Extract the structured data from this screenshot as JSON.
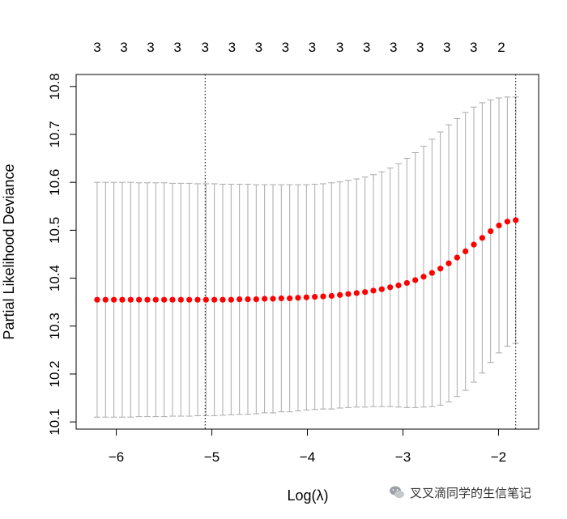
{
  "chart_data": {
    "type": "scatter",
    "title": "",
    "xlabel": "Log(λ)",
    "ylabel": "Partial Likelihood Deviance",
    "xlim": [
      -6.42,
      -1.58
    ],
    "ylim": [
      10.085,
      10.825
    ],
    "x_ticks": [
      -6,
      -5,
      -4,
      -3,
      -2
    ],
    "x_tick_labels": [
      "−6",
      "−5",
      "−4",
      "−3",
      "−2"
    ],
    "y_ticks": [
      10.1,
      10.2,
      10.3,
      10.4,
      10.5,
      10.6,
      10.7,
      10.8
    ],
    "y_tick_labels": [
      "10.1",
      "10.2",
      "10.3",
      "10.4",
      "10.5",
      "10.6",
      "10.7",
      "10.8"
    ],
    "top_axis": {
      "ticks": [
        -6.2,
        -5.92,
        -5.64,
        -5.36,
        -5.07,
        -4.79,
        -4.51,
        -4.23,
        -3.95,
        -3.66,
        -3.38,
        -3.1,
        -2.82,
        -2.54,
        -2.26,
        -1.97
      ],
      "labels": [
        "3",
        "3",
        "3",
        "3",
        "3",
        "3",
        "3",
        "3",
        "3",
        "3",
        "3",
        "3",
        "3",
        "3",
        "3",
        "2"
      ]
    },
    "vlines": [
      -5.07,
      -1.82
    ],
    "grid": false,
    "point_color": "#ff0000",
    "errorbar_color": "#aaaaaa",
    "series": [
      {
        "x_start": -6.2,
        "x_end": -1.82,
        "mean": [
          10.355,
          10.355,
          10.355,
          10.355,
          10.355,
          10.355,
          10.355,
          10.355,
          10.355,
          10.355,
          10.355,
          10.355,
          10.355,
          10.355,
          10.355,
          10.355,
          10.355,
          10.356,
          10.356,
          10.356,
          10.357,
          10.357,
          10.358,
          10.358,
          10.359,
          10.36,
          10.361,
          10.362,
          10.363,
          10.365,
          10.367,
          10.369,
          10.371,
          10.374,
          10.377,
          10.381,
          10.385,
          10.39,
          10.396,
          10.403,
          10.411,
          10.42,
          10.431,
          10.443,
          10.456,
          10.47,
          10.484,
          10.498,
          10.51,
          10.518,
          10.521
        ],
        "upper": [
          10.6,
          10.6,
          10.6,
          10.6,
          10.6,
          10.599,
          10.599,
          10.599,
          10.599,
          10.598,
          10.598,
          10.598,
          10.597,
          10.597,
          10.597,
          10.596,
          10.596,
          10.596,
          10.596,
          10.595,
          10.595,
          10.595,
          10.595,
          10.595,
          10.595,
          10.595,
          10.596,
          10.597,
          10.599,
          10.601,
          10.604,
          10.607,
          10.611,
          10.616,
          10.622,
          10.63,
          10.639,
          10.65,
          10.662,
          10.675,
          10.69,
          10.705,
          10.72,
          10.733,
          10.746,
          10.757,
          10.766,
          10.772,
          10.776,
          10.778,
          10.778
        ],
        "lower": [
          10.11,
          10.11,
          10.11,
          10.11,
          10.11,
          10.111,
          10.111,
          10.111,
          10.111,
          10.112,
          10.112,
          10.112,
          10.113,
          10.113,
          10.113,
          10.114,
          10.115,
          10.116,
          10.116,
          10.117,
          10.119,
          10.119,
          10.121,
          10.121,
          10.123,
          10.125,
          10.126,
          10.127,
          10.127,
          10.129,
          10.13,
          10.131,
          10.131,
          10.132,
          10.132,
          10.132,
          10.131,
          10.13,
          10.13,
          10.131,
          10.132,
          10.135,
          10.142,
          10.153,
          10.166,
          10.183,
          10.202,
          10.224,
          10.244,
          10.258,
          10.264
        ]
      }
    ]
  },
  "watermark": {
    "text": "叉叉滴同学的生信笔记",
    "icon": "wechat-icon"
  }
}
